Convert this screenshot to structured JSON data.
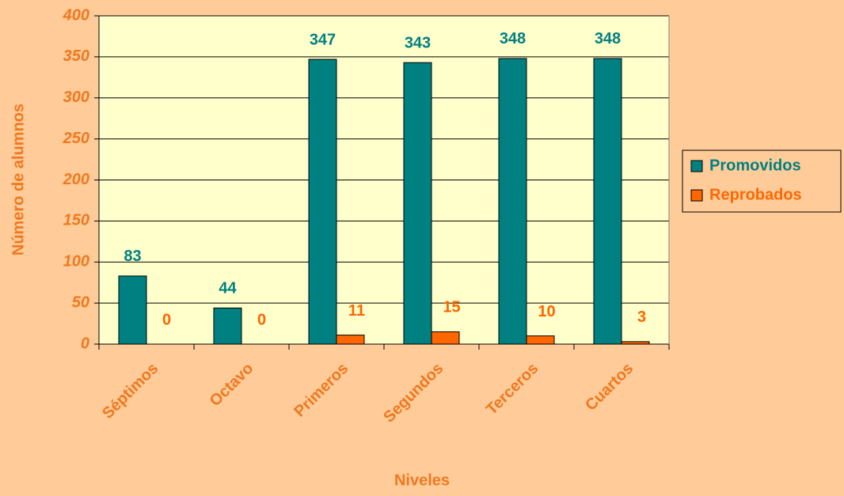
{
  "chart_data": {
    "type": "bar",
    "categories": [
      "Séptimos",
      "Octavo",
      "Primeros",
      "Segundos",
      "Terceros",
      "Cuartos"
    ],
    "series": [
      {
        "name": "Promovidos",
        "color": "#008080",
        "values": [
          83,
          44,
          347,
          343,
          348,
          348
        ]
      },
      {
        "name": "Reprobados",
        "color": "#FF6600",
        "values": [
          0,
          0,
          11,
          15,
          10,
          3
        ]
      }
    ],
    "x_label": "Niveles",
    "y_label": "Número de alumnos",
    "ylim": [
      0,
      400
    ],
    "yticks": [
      0,
      50,
      100,
      150,
      200,
      250,
      300,
      350,
      400
    ],
    "grid": true,
    "legend": "right"
  }
}
